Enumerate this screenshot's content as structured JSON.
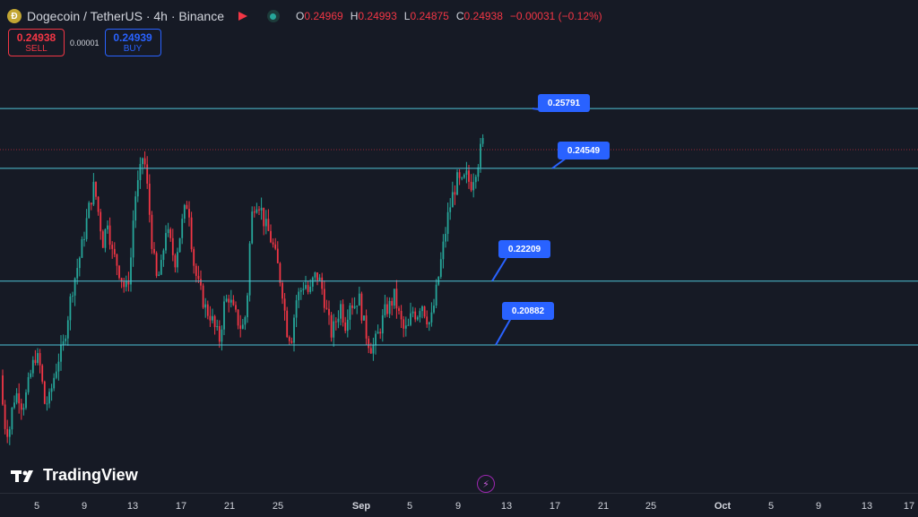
{
  "header": {
    "coin_icon": "dogecoin-icon",
    "symbol": "Dogecoin / TetherUS · 4h · Binance",
    "open_label": "O",
    "open": "0.24969",
    "high_label": "H",
    "high": "0.24993",
    "low_label": "L",
    "low": "0.24875",
    "close_label": "C",
    "close": "0.24938",
    "change": "−0.00031 (−0.12%)"
  },
  "trade": {
    "sell_price": "0.24938",
    "sell_label": "SELL",
    "spread": "0.00001",
    "buy_price": "0.24939",
    "buy_label": "BUY"
  },
  "branding": {
    "logo_text": "TradingView"
  },
  "colors": {
    "up": "#26a69a",
    "down": "#f23645",
    "level_line": "#4fc3d6",
    "label_bg": "#2962ff",
    "bg": "#161a25"
  },
  "chart_data": {
    "type": "candlestick",
    "price_range": [
      0.18,
      0.273
    ],
    "levels": [
      {
        "value": 0.25791,
        "label": "0.25791"
      },
      {
        "value": 0.24549,
        "label": "0.24549"
      },
      {
        "value": 0.22209,
        "label": "0.22209"
      },
      {
        "value": 0.20882,
        "label": "0.20882"
      }
    ],
    "x_ticks": [
      {
        "label": "5",
        "major": false
      },
      {
        "label": "9",
        "major": false
      },
      {
        "label": "13",
        "major": false
      },
      {
        "label": "17",
        "major": false
      },
      {
        "label": "21",
        "major": false
      },
      {
        "label": "25",
        "major": false
      },
      {
        "label": "Sep",
        "major": true
      },
      {
        "label": "5",
        "major": false
      },
      {
        "label": "9",
        "major": false
      },
      {
        "label": "13",
        "major": false
      },
      {
        "label": "17",
        "major": false
      },
      {
        "label": "21",
        "major": false
      },
      {
        "label": "25",
        "major": false
      },
      {
        "label": "Oct",
        "major": true
      },
      {
        "label": "5",
        "major": false
      },
      {
        "label": "9",
        "major": false
      },
      {
        "label": "13",
        "major": false
      },
      {
        "label": "17",
        "major": false
      }
    ],
    "close_path": [
      [
        0,
        0.2025
      ],
      [
        5,
        0.1925
      ],
      [
        10,
        0.1905
      ],
      [
        15,
        0.1975
      ],
      [
        20,
        0.199
      ],
      [
        25,
        0.196
      ],
      [
        30,
        0.199
      ],
      [
        35,
        0.2035
      ],
      [
        40,
        0.207
      ],
      [
        45,
        0.204
      ],
      [
        50,
        0.1965
      ],
      [
        55,
        0.1975
      ],
      [
        60,
        0.202
      ],
      [
        65,
        0.206
      ],
      [
        70,
        0.208
      ],
      [
        75,
        0.214
      ],
      [
        80,
        0.22
      ],
      [
        85,
        0.224
      ],
      [
        90,
        0.228
      ],
      [
        95,
        0.233
      ],
      [
        100,
        0.238
      ],
      [
        105,
        0.242
      ],
      [
        110,
        0.236
      ],
      [
        115,
        0.23
      ],
      [
        120,
        0.235
      ],
      [
        125,
        0.228
      ],
      [
        130,
        0.226
      ],
      [
        135,
        0.223
      ],
      [
        140,
        0.22
      ],
      [
        145,
        0.224
      ],
      [
        150,
        0.239
      ],
      [
        155,
        0.243
      ],
      [
        160,
        0.249
      ],
      [
        165,
        0.24
      ],
      [
        170,
        0.229
      ],
      [
        175,
        0.222
      ],
      [
        180,
        0.225
      ],
      [
        185,
        0.233
      ],
      [
        190,
        0.23
      ],
      [
        195,
        0.226
      ],
      [
        200,
        0.231
      ],
      [
        205,
        0.236
      ],
      [
        210,
        0.239
      ],
      [
        215,
        0.227
      ],
      [
        220,
        0.222
      ],
      [
        225,
        0.219
      ],
      [
        230,
        0.216
      ],
      [
        235,
        0.215
      ],
      [
        240,
        0.212
      ],
      [
        245,
        0.21
      ],
      [
        250,
        0.217
      ],
      [
        255,
        0.219
      ],
      [
        260,
        0.216
      ],
      [
        265,
        0.214
      ],
      [
        270,
        0.212
      ],
      [
        275,
        0.216
      ],
      [
        280,
        0.235
      ],
      [
        285,
        0.239
      ],
      [
        290,
        0.238
      ],
      [
        295,
        0.234
      ],
      [
        300,
        0.232
      ],
      [
        305,
        0.229
      ],
      [
        310,
        0.225
      ],
      [
        315,
        0.22
      ],
      [
        320,
        0.212
      ],
      [
        325,
        0.21
      ],
      [
        330,
        0.218
      ],
      [
        335,
        0.22
      ],
      [
        340,
        0.222
      ],
      [
        345,
        0.219
      ],
      [
        350,
        0.223
      ],
      [
        355,
        0.223
      ],
      [
        360,
        0.22
      ],
      [
        365,
        0.215
      ],
      [
        370,
        0.211
      ],
      [
        375,
        0.214
      ],
      [
        380,
        0.217
      ],
      [
        385,
        0.213
      ],
      [
        390,
        0.218
      ],
      [
        395,
        0.217
      ],
      [
        400,
        0.219
      ],
      [
        405,
        0.214
      ],
      [
        410,
        0.21
      ],
      [
        415,
        0.208
      ],
      [
        420,
        0.21
      ],
      [
        425,
        0.213
      ],
      [
        430,
        0.216
      ],
      [
        435,
        0.217
      ],
      [
        440,
        0.219
      ],
      [
        445,
        0.215
      ],
      [
        450,
        0.212
      ],
      [
        455,
        0.212
      ],
      [
        460,
        0.216
      ],
      [
        465,
        0.215
      ],
      [
        470,
        0.218
      ],
      [
        475,
        0.215
      ],
      [
        480,
        0.213
      ],
      [
        485,
        0.218
      ],
      [
        490,
        0.224
      ],
      [
        495,
        0.23
      ],
      [
        500,
        0.236
      ],
      [
        505,
        0.24
      ],
      [
        510,
        0.243
      ],
      [
        515,
        0.242
      ],
      [
        520,
        0.244
      ],
      [
        525,
        0.242
      ],
      [
        530,
        0.245
      ],
      [
        535,
        0.248
      ],
      [
        538,
        0.2515
      ],
      [
        540,
        0.24938
      ]
    ]
  }
}
